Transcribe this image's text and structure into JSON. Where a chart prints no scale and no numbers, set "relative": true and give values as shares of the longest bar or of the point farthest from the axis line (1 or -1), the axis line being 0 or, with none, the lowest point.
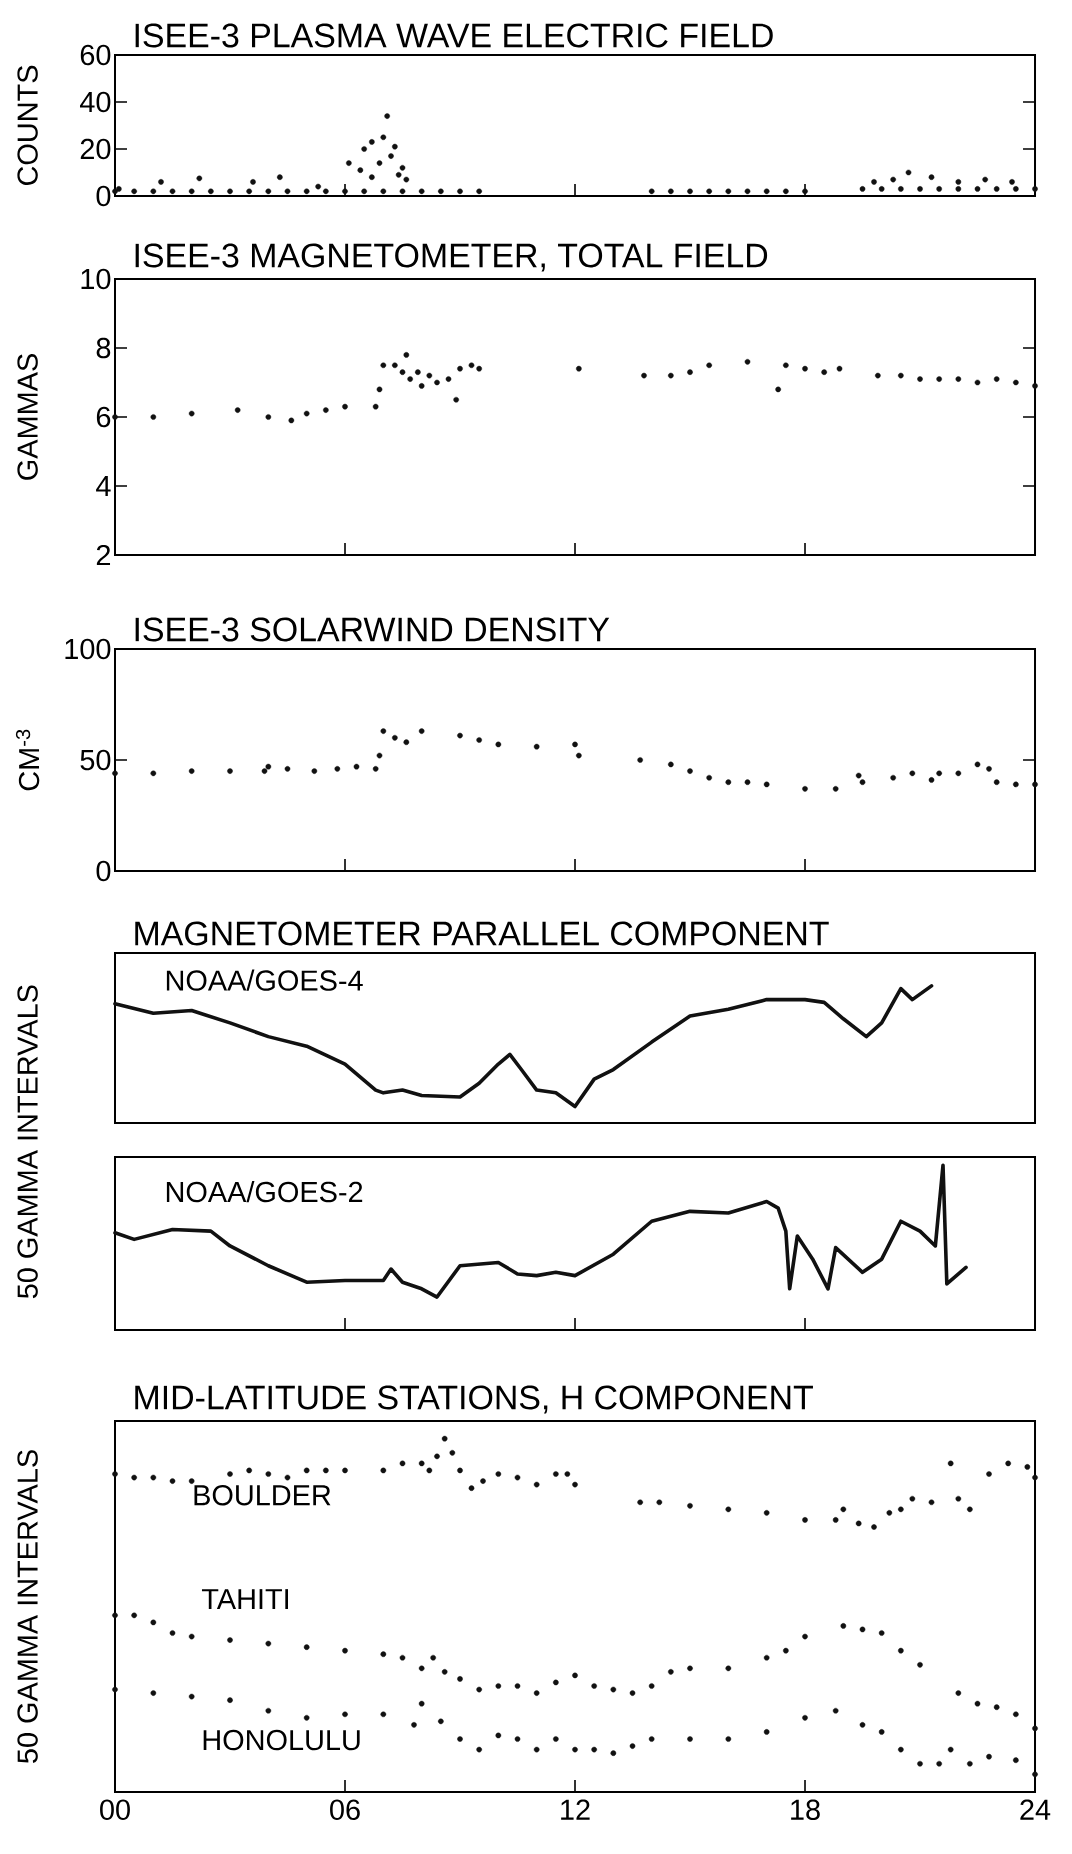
{
  "chart_data": [
    {
      "type": "scatter",
      "title": "ISEE-3  PLASMA  WAVE  ELECTRIC FIELD",
      "ylabel": "COUNTS",
      "xlim": [
        0,
        24
      ],
      "xticks": [
        {
          "value": 6,
          "label": null
        },
        {
          "value": 12,
          "label": null
        },
        {
          "value": 18,
          "label": null
        }
      ],
      "ylim": [
        0,
        60
      ],
      "yticks": [
        0,
        20,
        40,
        60
      ],
      "tick_labels": "y",
      "marker": "circle",
      "color": "#111111",
      "x": [
        0,
        0.1,
        0.5,
        1,
        1.2,
        1.5,
        2,
        2.2,
        2.5,
        3,
        3.5,
        3.6,
        4,
        4.3,
        4.5,
        5,
        5.3,
        5.5,
        6,
        6.1,
        6.4,
        6.5,
        6.5,
        6.7,
        6.7,
        6.9,
        7,
        7,
        7.1,
        7.2,
        7.3,
        7.4,
        7.5,
        7.5,
        7.6,
        8,
        8.5,
        9,
        9.5,
        14,
        14.5,
        15,
        15.5,
        16,
        16.5,
        17,
        17.5,
        18,
        19.5,
        19.8,
        20,
        20.3,
        20.5,
        20.7,
        21,
        21.3,
        21.5,
        22,
        22,
        22.5,
        22.7,
        23,
        23.4,
        23.5,
        24
      ],
      "values": [
        2,
        3,
        2,
        2,
        6,
        2,
        2,
        7.5,
        2,
        2,
        2,
        6,
        2,
        8,
        2,
        2,
        4,
        2,
        2,
        14,
        11,
        2,
        20,
        23,
        8,
        14,
        2,
        25,
        34,
        17,
        21,
        9,
        2,
        12,
        7,
        2,
        2,
        2,
        2,
        2,
        2,
        2,
        2,
        2,
        2,
        2,
        2,
        2,
        3,
        6,
        3,
        7,
        3,
        10,
        3,
        8,
        3,
        3,
        6,
        3,
        7,
        3,
        6,
        3,
        3
      ]
    },
    {
      "type": "scatter",
      "title": "ISEE-3  MAGNETOMETER,  TOTAL  FIELD",
      "ylabel": "GAMMAS",
      "xlim": [
        0,
        24
      ],
      "xticks": [
        {
          "value": 6,
          "label": null
        },
        {
          "value": 12,
          "label": null
        },
        {
          "value": 18,
          "label": null
        }
      ],
      "ylim": [
        2,
        10
      ],
      "yticks": [
        2,
        4,
        6,
        8,
        10
      ],
      "tick_labels": "y",
      "marker": "circle",
      "color": "#111111",
      "x": [
        0,
        1,
        2,
        3.2,
        4,
        4.6,
        5,
        5.5,
        6,
        6.8,
        6.9,
        7.0,
        7.3,
        7.5,
        7.6,
        7.7,
        7.9,
        8.0,
        8.2,
        8.4,
        8.7,
        8.9,
        9.0,
        9.3,
        9.5,
        12.1,
        13.8,
        14.5,
        15,
        15.5,
        16.5,
        17.3,
        17.5,
        18,
        18.5,
        18.9,
        19.9,
        20.5,
        21,
        21.5,
        22,
        22.5,
        23,
        23.5,
        24
      ],
      "values": [
        6.0,
        6.0,
        6.1,
        6.2,
        6.0,
        5.9,
        6.1,
        6.2,
        6.3,
        6.3,
        6.8,
        7.5,
        7.5,
        7.3,
        7.8,
        7.1,
        7.3,
        6.9,
        7.2,
        7.0,
        7.1,
        6.5,
        7.4,
        7.5,
        7.4,
        7.4,
        7.2,
        7.2,
        7.3,
        7.5,
        7.6,
        6.8,
        7.5,
        7.4,
        7.3,
        7.4,
        7.2,
        7.2,
        7.1,
        7.1,
        7.1,
        7.0,
        7.1,
        7.0,
        6.9
      ]
    },
    {
      "type": "scatter",
      "title": "ISEE-3  SOLARWIND  DENSITY",
      "ylabel": "CM$^{-3}$",
      "xlim": [
        0,
        24
      ],
      "xticks": [
        {
          "value": 6,
          "label": null
        },
        {
          "value": 12,
          "label": null
        },
        {
          "value": 18,
          "label": null
        }
      ],
      "ylim": [
        0,
        100
      ],
      "yticks": [
        0,
        50,
        100
      ],
      "tick_labels": "y",
      "marker": "circle",
      "color": "#111111",
      "x": [
        0,
        1,
        2,
        3,
        3.9,
        4.0,
        4.5,
        5.2,
        5.8,
        6.3,
        6.8,
        6.9,
        7.0,
        7.3,
        7.6,
        8,
        9,
        9.5,
        10,
        11,
        12,
        12.1,
        13.7,
        14.5,
        15,
        15.5,
        16,
        16.5,
        17,
        18,
        18.8,
        19.4,
        19.5,
        20.3,
        20.8,
        21.3,
        21.5,
        22,
        22.5,
        22.8,
        23,
        23.5,
        24
      ],
      "values": [
        44,
        44,
        45,
        45,
        45,
        47,
        46,
        45,
        46,
        47,
        46,
        52,
        63,
        60,
        58,
        63,
        61,
        59,
        57,
        56,
        57,
        52,
        50,
        48,
        45,
        42,
        40,
        40,
        39,
        37,
        37,
        43,
        40,
        42,
        44,
        41,
        44,
        44,
        48,
        46,
        40,
        39,
        39
      ]
    },
    {
      "type": "line",
      "title": "MAGNETOMETER  PARALLEL  COMPONENT",
      "ylabel": "50 GAMMA INTERVALS",
      "xlim": [
        0,
        24
      ],
      "relative": true,
      "tick_labels": false,
      "marker": "none",
      "line_style": "solid",
      "series": [
        {
          "name": "NOAA/GOES-4",
          "color": "#111111",
          "x": [
            0,
            1,
            2,
            3,
            4,
            5,
            6,
            6.8,
            7.0,
            7.5,
            8,
            9,
            9.5,
            10,
            10.3,
            10.6,
            11,
            11.5,
            12,
            12.5,
            13,
            14,
            15,
            16,
            17,
            18,
            18.5,
            19,
            19.6,
            20,
            20.5,
            20.8,
            21.3
          ],
          "values": [
            0.87,
            0.8,
            0.82,
            0.73,
            0.63,
            0.56,
            0.43,
            0.24,
            0.22,
            0.24,
            0.2,
            0.19,
            0.29,
            0.43,
            0.5,
            0.39,
            0.24,
            0.22,
            0.12,
            0.32,
            0.39,
            0.59,
            0.78,
            0.83,
            0.9,
            0.9,
            0.88,
            0.76,
            0.63,
            0.73,
            0.98,
            0.9,
            1.0
          ]
        }
      ]
    },
    {
      "type": "line",
      "xlim": [
        0,
        24
      ],
      "xticks": [
        {
          "value": 6,
          "label": null
        },
        {
          "value": 12,
          "label": null
        },
        {
          "value": 18,
          "label": null
        }
      ],
      "relative": true,
      "tick_labels": false,
      "marker": "none",
      "line_style": "solid",
      "series": [
        {
          "name": "NOAA/GOES-2",
          "color": "#111111",
          "x": [
            0,
            0.5,
            1.5,
            2.5,
            3,
            4,
            5,
            6,
            7,
            7.2,
            7.5,
            8,
            8.4,
            9,
            10,
            10.5,
            11,
            11.5,
            12,
            13,
            14,
            15,
            16,
            17,
            17.3,
            17.5,
            17.6,
            17.8,
            18.2,
            18.6,
            18.8,
            19.5,
            20,
            20.5,
            21,
            21.4,
            21.6,
            21.7,
            22.2
          ],
          "values": [
            0.59,
            0.55,
            0.61,
            0.6,
            0.51,
            0.39,
            0.29,
            0.3,
            0.3,
            0.37,
            0.29,
            0.25,
            0.2,
            0.39,
            0.41,
            0.34,
            0.33,
            0.35,
            0.33,
            0.46,
            0.66,
            0.72,
            0.71,
            0.78,
            0.74,
            0.6,
            0.25,
            0.57,
            0.43,
            0.25,
            0.5,
            0.35,
            0.43,
            0.66,
            0.6,
            0.51,
            1.0,
            0.28,
            0.38
          ]
        }
      ]
    },
    {
      "type": "scatter",
      "title": "MID-LATITUDE  STATIONS,  H COMPONENT",
      "ylabel": "50 GAMMA INTERVALS",
      "xlim": [
        0,
        24
      ],
      "xticks": [
        {
          "value": 0,
          "label": "00"
        },
        {
          "value": 6,
          "label": "06"
        },
        12,
        18,
        24
      ],
      "relative": true,
      "tick_labels": "x",
      "marker": "circle",
      "series": [
        {
          "name": "BOULDER",
          "color": "#111111",
          "x": [
            0,
            0.5,
            1,
            1.5,
            2,
            3,
            3.5,
            4,
            4.5,
            5,
            5.5,
            6,
            7,
            7.5,
            8,
            8.2,
            8.4,
            8.6,
            8.8,
            9,
            9.3,
            9.6,
            10,
            10.5,
            11,
            11.5,
            11.8,
            12,
            13.7,
            14.2,
            15,
            16,
            17,
            18,
            18.8,
            19,
            19.4,
            19.8,
            20.2,
            20.5,
            20.8,
            21.3,
            21.8,
            22,
            22.3,
            22.8,
            23.3,
            23.8,
            24
          ],
          "values": [
            0.9,
            0.89,
            0.89,
            0.88,
            0.88,
            0.9,
            0.91,
            0.9,
            0.89,
            0.91,
            0.91,
            0.91,
            0.91,
            0.93,
            0.93,
            0.91,
            0.95,
            1.0,
            0.96,
            0.91,
            0.86,
            0.88,
            0.9,
            0.89,
            0.87,
            0.9,
            0.9,
            0.87,
            0.82,
            0.82,
            0.81,
            0.8,
            0.79,
            0.77,
            0.77,
            0.8,
            0.76,
            0.75,
            0.79,
            0.8,
            0.83,
            0.82,
            0.93,
            0.83,
            0.8,
            0.9,
            0.93,
            0.92,
            0.89
          ]
        },
        {
          "name": "TAHITI",
          "color": "#111111",
          "x": [
            0,
            0.5,
            1,
            1.5,
            2,
            3,
            4,
            5,
            6,
            7,
            7.5,
            8,
            8.3,
            8.6,
            9,
            9.5,
            10,
            10.5,
            11,
            11.5,
            12,
            12.5,
            13,
            13.5,
            14,
            14.5,
            15,
            16,
            17,
            17.5,
            18,
            19,
            19.5,
            20,
            20.5,
            21,
            22,
            22.5,
            23,
            23.5,
            24
          ],
          "values": [
            0.5,
            0.5,
            0.48,
            0.45,
            0.44,
            0.43,
            0.42,
            0.41,
            0.4,
            0.39,
            0.38,
            0.35,
            0.38,
            0.34,
            0.32,
            0.29,
            0.3,
            0.3,
            0.28,
            0.31,
            0.33,
            0.3,
            0.29,
            0.28,
            0.3,
            0.34,
            0.35,
            0.35,
            0.38,
            0.4,
            0.44,
            0.47,
            0.46,
            0.45,
            0.4,
            0.36,
            0.28,
            0.25,
            0.24,
            0.22,
            0.18
          ]
        },
        {
          "name": "HONOLULU",
          "color": "#111111",
          "x": [
            0,
            1,
            2,
            3,
            4,
            5,
            6,
            7,
            7.8,
            8,
            8.5,
            9,
            9.5,
            10,
            10.5,
            11,
            11.5,
            12,
            12.5,
            13,
            13.5,
            14,
            15,
            16,
            17,
            18,
            18.8,
            19.5,
            20,
            20.5,
            21,
            21.5,
            21.8,
            22.3,
            22.8,
            23.5,
            24
          ],
          "values": [
            0.29,
            0.28,
            0.27,
            0.26,
            0.23,
            0.21,
            0.22,
            0.22,
            0.19,
            0.25,
            0.2,
            0.15,
            0.12,
            0.16,
            0.15,
            0.12,
            0.15,
            0.12,
            0.12,
            0.11,
            0.13,
            0.15,
            0.15,
            0.15,
            0.17,
            0.21,
            0.23,
            0.19,
            0.17,
            0.12,
            0.08,
            0.08,
            0.12,
            0.08,
            0.1,
            0.09,
            0.05
          ]
        }
      ]
    }
  ]
}
